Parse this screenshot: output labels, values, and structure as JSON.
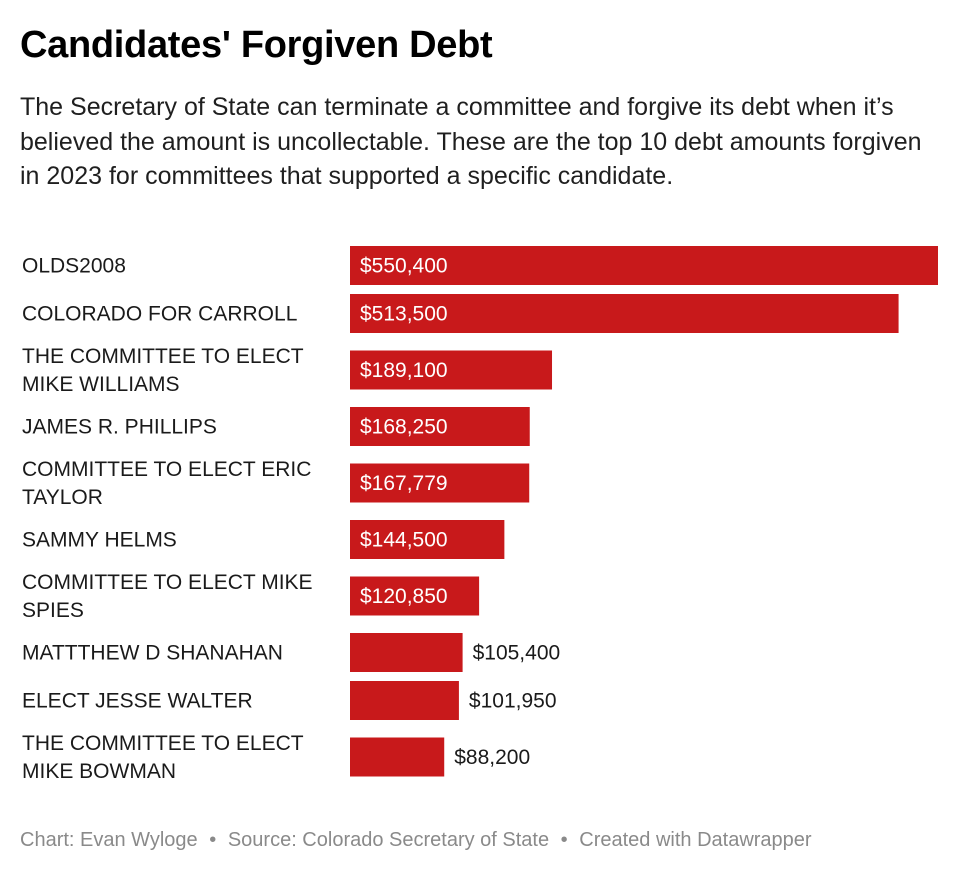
{
  "header": {
    "title": "Candidates' Forgiven Debt",
    "subtitle": "The Secretary of State can terminate a committee and forgive its debt when it’s believed the amount is uncollectable. These are the top 10 debt amounts forgiven in 2023 for committees that supported a specific candidate."
  },
  "footer": {
    "chart_credit": "Chart: Evan Wyloge",
    "source": "Source: Colorado Secretary of State",
    "created_with": "Created with Datawrapper",
    "separator": "•"
  },
  "colors": {
    "bar": "#c8191b",
    "label_inside": "#ffffff",
    "label_outside": "#1a1a1a"
  },
  "chart_data": {
    "type": "bar",
    "orientation": "horizontal",
    "categories": [
      "OLDS2008",
      "COLORADO FOR CARROLL",
      "THE COMMITTEE TO ELECT MIKE WILLIAMS",
      "JAMES R. PHILLIPS",
      "COMMITTEE TO ELECT ERIC TAYLOR",
      "SAMMY HELMS",
      "COMMITTEE TO ELECT MIKE SPIES",
      "MATTTHEW D SHANAHAN",
      "ELECT JESSE WALTER",
      "THE COMMITTEE TO ELECT MIKE BOWMAN"
    ],
    "category_lines": [
      [
        "OLDS2008"
      ],
      [
        "COLORADO FOR CARROLL"
      ],
      [
        "THE COMMITTEE TO ELECT",
        "MIKE WILLIAMS"
      ],
      [
        "JAMES R. PHILLIPS"
      ],
      [
        "COMMITTEE TO ELECT ERIC",
        "TAYLOR"
      ],
      [
        "SAMMY HELMS"
      ],
      [
        "COMMITTEE TO ELECT MIKE",
        "SPIES"
      ],
      [
        "MATTTHEW D SHANAHAN"
      ],
      [
        "ELECT JESSE WALTER"
      ],
      [
        "THE COMMITTEE TO ELECT",
        "MIKE BOWMAN"
      ]
    ],
    "values": [
      550400,
      513500,
      189100,
      168250,
      167779,
      144500,
      120850,
      105400,
      101950,
      88200
    ],
    "value_labels": [
      "$550,400",
      "$513,500",
      "$189,100",
      "$168,250",
      "$167,779",
      "$144,500",
      "$120,850",
      "$105,400",
      "$101,950",
      "$88,200"
    ],
    "xlim": [
      0,
      550400
    ],
    "grid": false,
    "legend": "none"
  }
}
